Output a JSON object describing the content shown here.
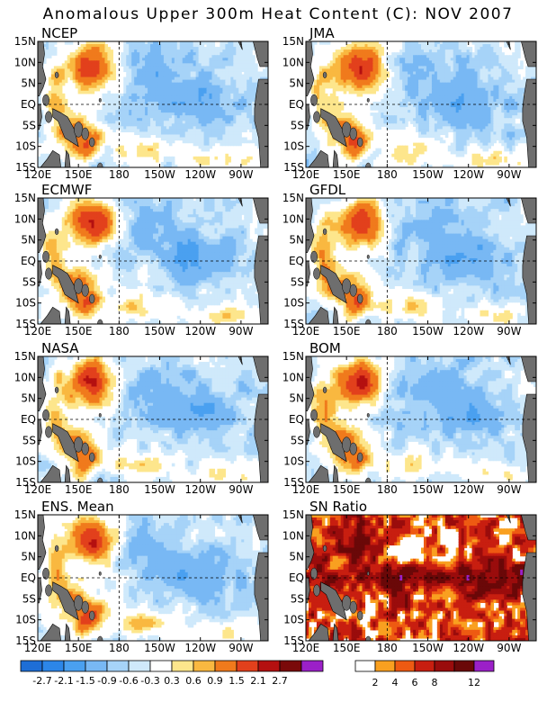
{
  "figure": {
    "title": "Anomalous Upper 300m Heat Content (C): NOV 2007"
  },
  "chart_data": [
    {
      "type": "heatmap",
      "title": "NCEP",
      "field": "anom",
      "variant": 0
    },
    {
      "type": "heatmap",
      "title": "JMA",
      "field": "anom",
      "variant": 1
    },
    {
      "type": "heatmap",
      "title": "ECMWF",
      "field": "anom",
      "variant": 2
    },
    {
      "type": "heatmap",
      "title": "GFDL",
      "field": "anom",
      "variant": 3
    },
    {
      "type": "heatmap",
      "title": "NASA",
      "field": "anom",
      "variant": 4
    },
    {
      "type": "heatmap",
      "title": "BOM",
      "field": "anom",
      "variant": 5
    },
    {
      "type": "heatmap",
      "title": "ENS. Mean",
      "field": "anom",
      "variant": 6
    },
    {
      "type": "heatmap",
      "title": "SN Ratio",
      "field": "snr",
      "variant": 7
    }
  ],
  "axes": {
    "x_ticks": [
      "120E",
      "150E",
      "180",
      "150W",
      "120W",
      "90W"
    ],
    "x_values": [
      120,
      150,
      180,
      210,
      240,
      270
    ],
    "y_ticks": [
      "15N",
      "10N",
      "5N",
      "EQ",
      "5S",
      "10S",
      "15S"
    ],
    "y_values": [
      15,
      10,
      5,
      0,
      -5,
      -10,
      -15
    ],
    "xlim": [
      120,
      290
    ],
    "ylim": [
      -15,
      15
    ],
    "dashed_lines": {
      "x": 180,
      "y": 0
    }
  },
  "anom_colorbar": {
    "labels": [
      "-2.7",
      "-2.1",
      "-1.5",
      "-0.9",
      "-0.6",
      "-0.3",
      "0.3",
      "0.6",
      "0.9",
      "1.5",
      "2.1",
      "2.7"
    ],
    "colors": [
      "#1e6ed6",
      "#2c86e8",
      "#4aa0f0",
      "#78b8f4",
      "#a6d3f8",
      "#cfe9fb",
      "#ffffff",
      "#fde68c",
      "#f9b840",
      "#f07a1c",
      "#e2401c",
      "#b41010",
      "#7a0a0a",
      "#9b20c8"
    ]
  },
  "sn_colorbar": {
    "labels": [
      "2",
      "4",
      "6",
      "8",
      "12"
    ],
    "colors": [
      "#ffffff",
      "#f9a020",
      "#ee5a12",
      "#c81e10",
      "#9a0c0c",
      "#6a0808",
      "#9b20c8"
    ]
  },
  "land_color": "#6e6e6e"
}
